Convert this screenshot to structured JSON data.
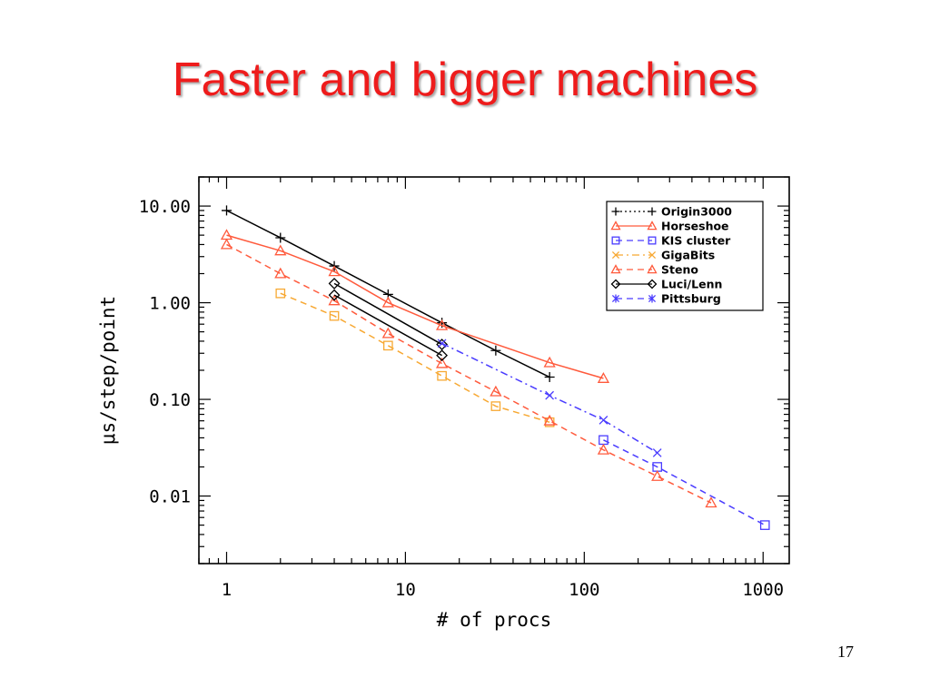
{
  "slide": {
    "title": "Faster and bigger machines",
    "page_number": "17"
  },
  "colors": {
    "title": "#ee1c1c",
    "black": "#000000",
    "red": "#ff5a3c",
    "blue": "#4a3cff",
    "orange": "#f7a832"
  },
  "chart_data": {
    "type": "line",
    "title": "",
    "xlabel": "# of procs",
    "ylabel": "μs/step/point",
    "xscale": "log",
    "yscale": "log",
    "xlim": [
      0.7,
      1400
    ],
    "ylim": [
      0.002,
      20
    ],
    "x_ticks": [
      1,
      10,
      100,
      1000
    ],
    "x_tick_labels": [
      "1",
      "10",
      "100",
      "1000"
    ],
    "y_ticks": [
      10,
      1,
      0.1,
      0.01
    ],
    "y_tick_labels": [
      "10.00",
      "1.00",
      "0.10",
      "0.01"
    ],
    "legend_position": "top-right",
    "grid": false,
    "series": [
      {
        "name": "Origin3000",
        "color": "#000000",
        "marker": "plus",
        "line": "solid",
        "x": [
          1,
          2,
          4,
          8,
          16,
          32,
          64
        ],
        "y": [
          9.0,
          4.7,
          2.4,
          1.22,
          0.62,
          0.32,
          0.17
        ]
      },
      {
        "name": "Horseshoe",
        "color": "#ff5a3c",
        "marker": "triangle",
        "line": "solid",
        "x": [
          1,
          2,
          4,
          8,
          16,
          64,
          128
        ],
        "y": [
          5.0,
          3.45,
          2.1,
          1.0,
          0.58,
          0.24,
          0.165
        ]
      },
      {
        "name": "KIS cluster",
        "color": "#4a3cff",
        "marker": "square",
        "line": "dashed",
        "x": [
          128,
          256,
          1024
        ],
        "y": [
          0.038,
          0.02,
          0.005
        ]
      },
      {
        "name": "GigaBits",
        "color": "#f7a832",
        "marker": "square",
        "line": "dashed",
        "x": [
          2,
          4,
          8,
          16,
          32,
          64
        ],
        "y": [
          1.25,
          0.73,
          0.36,
          0.175,
          0.085,
          0.058
        ]
      },
      {
        "name": "Steno",
        "color": "#ff5a3c",
        "marker": "triangle",
        "line": "dashed",
        "x": [
          1,
          2,
          4,
          8,
          16,
          32,
          64,
          128,
          256,
          512
        ],
        "y": [
          4.0,
          2.0,
          1.05,
          0.48,
          0.235,
          0.12,
          0.06,
          0.03,
          0.016,
          0.0085
        ]
      },
      {
        "name": "Luci/Lenn",
        "color": "#000000",
        "marker": "diamond",
        "line": "solid",
        "x": [
          4,
          16
        ],
        "y": [
          1.58,
          0.37
        ]
      },
      {
        "name": "Luci/Lenn",
        "color": "#000000",
        "marker": "diamond",
        "line": "solid",
        "x": [
          4,
          16
        ],
        "y": [
          1.2,
          0.285
        ]
      },
      {
        "name": "Pittsburg",
        "color": "#4a3cff",
        "marker": "cross",
        "line": "dashdot",
        "x": [
          16,
          64,
          128,
          256
        ],
        "y": [
          0.38,
          0.11,
          0.061,
          0.028
        ]
      }
    ]
  }
}
